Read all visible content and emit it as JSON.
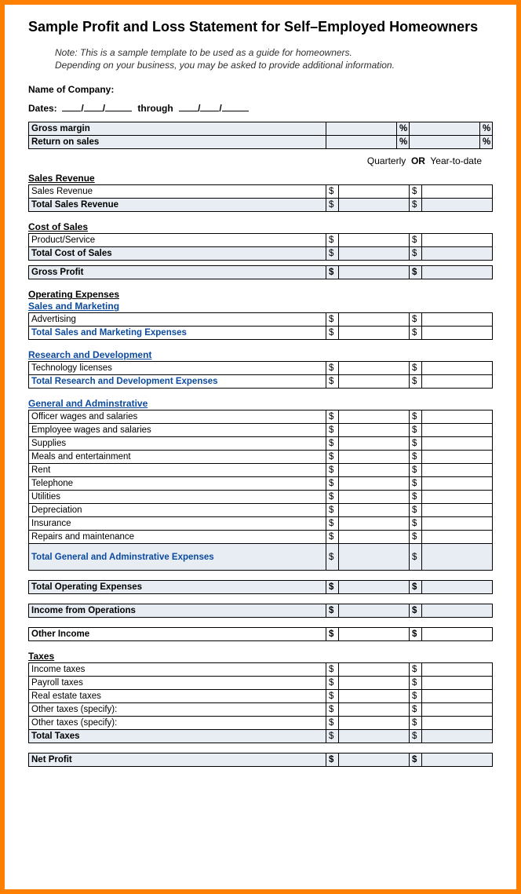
{
  "colors": {
    "border": "#ff7f00",
    "shade": "#e7edf3",
    "accent_blue": "#0b4a9e",
    "text": "#000000",
    "background": "#ffffff"
  },
  "title": "Sample Profit and Loss Statement for Self–Employed Homeowners",
  "note_line1": "Note: This is a sample template to be used as a guide for homeowners.",
  "note_line2": "Depending on your business, you may be asked to provide additional information.",
  "company_label": "Name of Company:",
  "dates_label": "Dates:",
  "dates_through": "through",
  "period_quarterly": "Quarterly",
  "period_or": "OR",
  "period_ytd": "Year-to-date",
  "symbols": {
    "pct": "%",
    "dollar": "$"
  },
  "margin_table": {
    "rows": [
      {
        "label": "Gross margin",
        "shaded": true,
        "bold": true,
        "suffix": "pct"
      },
      {
        "label": "Return on sales",
        "shaded": true,
        "bold": true,
        "suffix": "pct"
      }
    ]
  },
  "sections": {
    "sales_revenue": {
      "heading": "Sales Revenue",
      "rows": [
        {
          "label": "Sales Revenue"
        }
      ],
      "total": {
        "label": "Total Sales Revenue",
        "shaded": true,
        "bold": true
      }
    },
    "cost_of_sales": {
      "heading": "Cost of Sales",
      "rows": [
        {
          "label": "Product/Service"
        }
      ],
      "total": {
        "label": "Total Cost of Sales",
        "shaded": true,
        "bold": true
      }
    },
    "gross_profit": {
      "label": "Gross Profit",
      "shaded": true,
      "bold": true
    },
    "operating_expenses_heading": "Operating Expenses",
    "sales_marketing": {
      "heading": "Sales and Marketing",
      "rows": [
        {
          "label": "Advertising"
        }
      ],
      "total": {
        "label": "Total Sales and Marketing Expenses",
        "shaded": false,
        "bold": true,
        "blue": true
      }
    },
    "rnd": {
      "heading": "Research and Development",
      "rows": [
        {
          "label": "Technology licenses"
        }
      ],
      "total": {
        "label": "Total Research and Development Expenses",
        "shaded": false,
        "bold": true,
        "blue": true
      }
    },
    "g_and_a": {
      "heading": "General and Adminstrative",
      "rows": [
        {
          "label": "Officer wages and salaries"
        },
        {
          "label": "Employee wages and salaries"
        },
        {
          "label": "Supplies"
        },
        {
          "label": "Meals and entertainment"
        },
        {
          "label": "Rent"
        },
        {
          "label": "Telephone"
        },
        {
          "label": "Utilities"
        },
        {
          "label": "Depreciation"
        },
        {
          "label": "Insurance"
        },
        {
          "label": "Repairs and maintenance"
        }
      ],
      "total": {
        "label": "Total General and Adminstrative Expenses",
        "shaded": true,
        "bold": true,
        "blue": true
      }
    },
    "total_operating_expenses": {
      "label": "Total Operating Expenses",
      "shaded": true,
      "bold": true
    },
    "income_from_operations": {
      "label": "Income from Operations",
      "shaded": true,
      "bold": true
    },
    "other_income": {
      "label": "Other Income",
      "shaded": false,
      "bold": true
    },
    "taxes": {
      "heading": "Taxes",
      "rows": [
        {
          "label": "Income taxes"
        },
        {
          "label": "Payroll taxes"
        },
        {
          "label": "Real estate taxes"
        },
        {
          "label": "Other taxes (specify):"
        },
        {
          "label": "Other taxes (specify):"
        }
      ],
      "total": {
        "label": "Total Taxes",
        "shaded": true,
        "bold": true
      }
    },
    "net_profit": {
      "label": "Net Profit",
      "shaded": true,
      "bold": true
    }
  }
}
